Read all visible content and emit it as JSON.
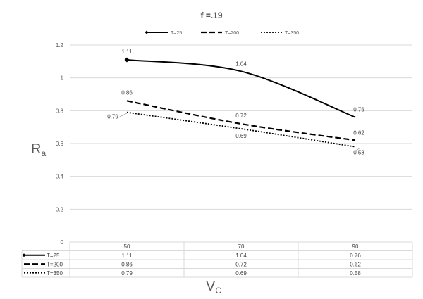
{
  "chart_data": {
    "type": "line",
    "title": "f =.19",
    "xlabel": "V",
    "xlabel_sub": "C",
    "ylabel": "R",
    "ylabel_sub": "a",
    "categories": [
      "50",
      "70",
      "90"
    ],
    "ylim": [
      0,
      1.2
    ],
    "ytick_labels": [
      "0",
      "0.2",
      "0.4",
      "0.6",
      "0.8",
      "1",
      "1.2"
    ],
    "grid": true,
    "legend_position": "top",
    "data_table": true,
    "series": [
      {
        "name": "T=25",
        "values": [
          1.11,
          1.04,
          0.76
        ],
        "labels": [
          "1.11",
          "1.04",
          "0.76"
        ],
        "style": "solid",
        "color": "#000000"
      },
      {
        "name": "T=200",
        "values": [
          0.86,
          0.72,
          0.62
        ],
        "labels": [
          "0.86",
          "0.72",
          "0.62"
        ],
        "style": "dashed",
        "color": "#000000"
      },
      {
        "name": "T=350",
        "values": [
          0.79,
          0.69,
          0.58
        ],
        "labels": [
          "0.79",
          "0.69",
          "0.58"
        ],
        "style": "dotted",
        "color": "#000000"
      }
    ]
  }
}
